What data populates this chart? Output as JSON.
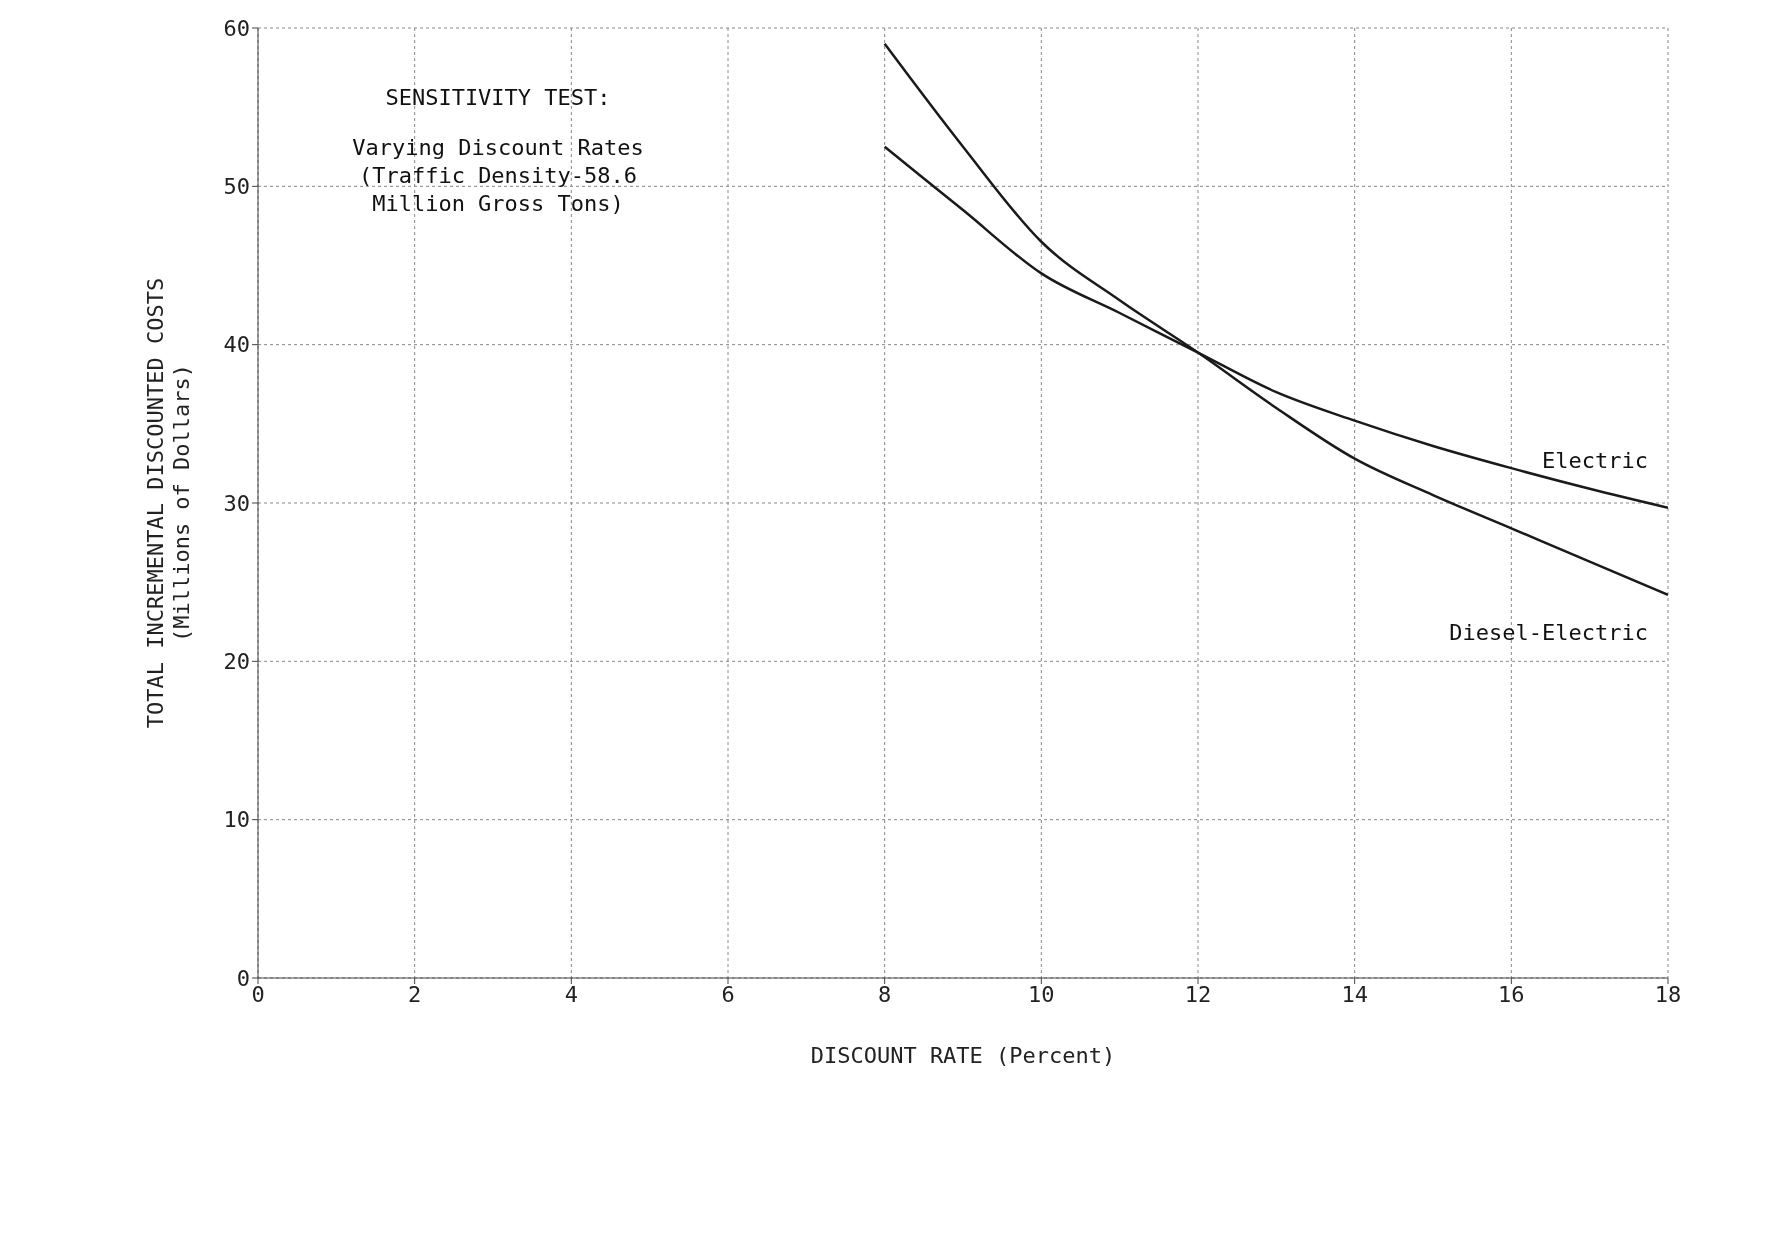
{
  "chart_data": {
    "type": "line",
    "title": "SENSITIVITY TEST:",
    "subtitle": "Varying Discount Rates\n(Traffic Density-58.6\nMillion Gross Tons)",
    "xlabel": "DISCOUNT RATE (Percent)",
    "ylabel": "TOTAL INCREMENTAL DISCOUNTED COSTS\n(Millions of Dollars)",
    "x": [
      8,
      9,
      10,
      11,
      12,
      13,
      14,
      15,
      16,
      17,
      18
    ],
    "series": [
      {
        "name": "Electric",
        "color": "#1a1a1a",
        "values": [
          52.5,
          48.5,
          44.5,
          42,
          39.5,
          37,
          35.2,
          33.6,
          32.2,
          30.9,
          29.7
        ]
      },
      {
        "name": "Diesel-Electric",
        "color": "#1a1a1a",
        "values": [
          59,
          52.5,
          46.5,
          42.8,
          39.5,
          36,
          32.8,
          30.5,
          28.4,
          26.3,
          24.2
        ]
      }
    ],
    "xlim": [
      0,
      18
    ],
    "xticks": [
      0,
      2,
      4,
      6,
      8,
      10,
      12,
      14,
      16,
      18
    ],
    "ylim": [
      0,
      60
    ],
    "yticks": [
      0,
      10,
      20,
      30,
      40,
      50,
      60
    ],
    "grid": true,
    "marker": "none",
    "line_style": "solid"
  }
}
